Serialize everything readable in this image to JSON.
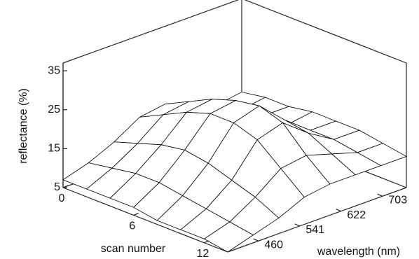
{
  "chart_data": {
    "type": "surface",
    "zlabel": "reflectance (%)",
    "ylabel": "scan number",
    "xlabel": "wavelength (nm)",
    "x": [
      400,
      450,
      500,
      550,
      600,
      650,
      700,
      750
    ],
    "y": [
      0,
      2,
      4,
      6,
      8,
      10,
      12,
      14
    ],
    "z": [
      [
        7,
        9,
        12,
        16,
        17,
        14,
        12,
        13
      ],
      [
        7,
        10,
        14,
        19,
        20,
        16,
        13,
        14
      ],
      [
        7,
        11,
        16,
        22,
        23,
        18,
        14,
        14
      ],
      [
        7,
        11,
        17,
        24,
        25,
        19,
        14,
        15
      ],
      [
        6,
        10,
        16,
        24,
        26,
        20,
        15,
        15
      ],
      [
        6,
        9,
        14,
        22,
        24,
        19,
        15,
        15
      ],
      [
        6,
        8,
        12,
        17,
        18,
        16,
        14,
        14
      ],
      [
        5,
        7,
        9,
        12,
        13,
        13,
        13,
        13
      ]
    ],
    "xlim": [
      400,
      750
    ],
    "ylim": [
      0,
      14
    ],
    "zlim": [
      5,
      37
    ],
    "xticks": [
      460,
      541,
      622,
      703
    ],
    "yticks": [
      0,
      6,
      12
    ],
    "zticks": [
      5,
      15,
      25,
      35
    ],
    "color": "#ffffff",
    "line_color": "#000000"
  }
}
